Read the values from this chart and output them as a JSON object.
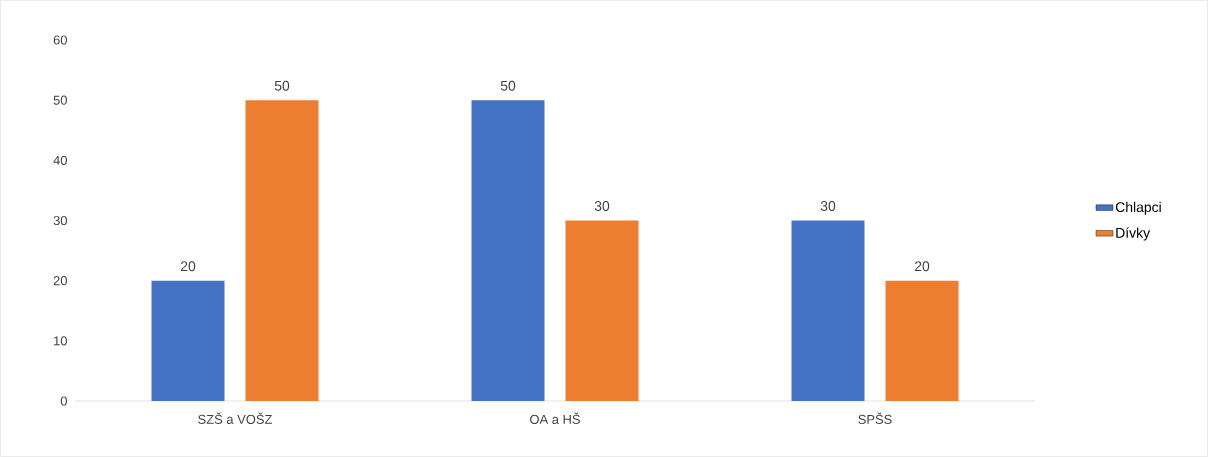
{
  "chart_data": {
    "type": "bar",
    "categories": [
      "SZŠ a VOŠZ",
      "OA a HŠ",
      "SPŠS"
    ],
    "series": [
      {
        "name": "Chlapci",
        "color": "#4472c4",
        "values": [
          20,
          50,
          30
        ]
      },
      {
        "name": "Dívky",
        "color": "#ed7d31",
        "values": [
          50,
          30,
          20
        ]
      }
    ],
    "ylim": [
      0,
      60
    ],
    "yticks": [
      0,
      10,
      20,
      30,
      40,
      50,
      60
    ],
    "grid": false,
    "legend": "right",
    "data_labels": true
  }
}
